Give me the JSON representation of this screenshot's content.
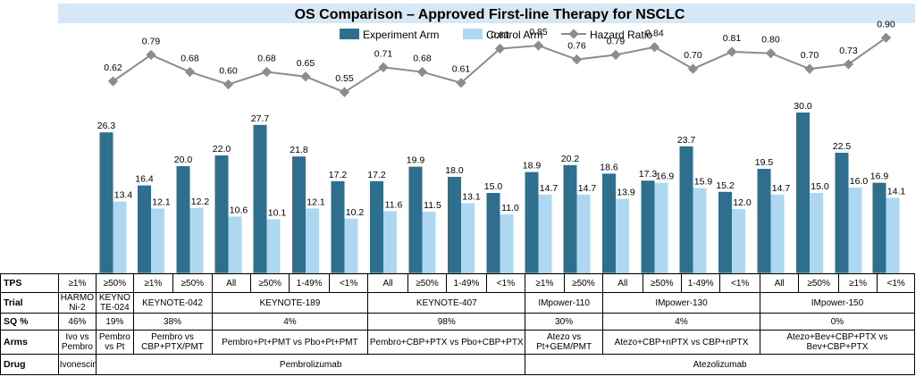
{
  "chart_data": {
    "type": "bar",
    "title": "OS Comparison – Approved First-line  Therapy for NSCLC",
    "legend": [
      "Experiment Arm",
      "Control Arm",
      "Hazard Ratio"
    ],
    "legend_position": "top",
    "colors": {
      "experiment": "#2e6f8e",
      "control": "#aed8f2",
      "hr_line": "#8c8c8c",
      "title_bg": "#d6e7f5"
    },
    "categories": [
      "≥1%",
      "≥50%",
      "≥1%",
      "≥50%",
      "All",
      "≥50%",
      "1-49%",
      "<1%",
      "All",
      "≥50%",
      "1-49%",
      "<1%",
      "≥1%",
      "≥50%",
      "All",
      "≥50%",
      "1-49%",
      "<1%",
      "All",
      "≥50%",
      "≥1%",
      "<1%"
    ],
    "series": [
      {
        "name": "Experiment Arm",
        "values": [
          null,
          26.3,
          16.4,
          20.0,
          22.0,
          27.7,
          21.8,
          17.2,
          17.2,
          19.9,
          18.0,
          15.0,
          18.9,
          20.2,
          18.6,
          17.3,
          23.7,
          15.2,
          19.5,
          30.0,
          22.5,
          16.9
        ]
      },
      {
        "name": "Control Arm",
        "values": [
          null,
          13.4,
          12.1,
          12.2,
          10.6,
          10.1,
          12.1,
          10.2,
          11.6,
          11.5,
          13.1,
          11.0,
          14.7,
          14.7,
          13.9,
          16.9,
          15.9,
          12.0,
          14.7,
          15.0,
          16.0,
          14.1
        ]
      },
      {
        "name": "Hazard Ratio",
        "values": [
          null,
          0.62,
          0.79,
          0.68,
          0.6,
          0.68,
          0.65,
          0.55,
          0.71,
          0.68,
          0.61,
          0.83,
          0.85,
          0.76,
          0.79,
          0.84,
          0.7,
          0.81,
          0.8,
          0.7,
          0.73,
          0.9
        ]
      }
    ],
    "exp_labels": [
      "",
      "26.3",
      "16.4",
      "20.0",
      "22.0",
      "27.7",
      "21.8",
      "17.2",
      "17.2",
      "19.9",
      "18.0",
      "15.0",
      "18.9",
      "20.2",
      "18.6",
      "17.3",
      "23.7",
      "15.2",
      "19.5",
      "30.0",
      "22.5",
      "16.9"
    ],
    "ctl_labels": [
      "",
      "13.4",
      "12.1",
      "12.2",
      "10.6",
      "10.1",
      "12.1",
      "10.2",
      "11.6",
      "11.5",
      "13.1",
      "11.0",
      "14.7",
      "14.7",
      "13.9",
      "16.9",
      "15.9",
      "12.0",
      "14.7",
      "15.0",
      "16.0",
      "14.1"
    ],
    "hr_labels": [
      "",
      "0.62",
      "0.79",
      "0.68",
      "0.60",
      "0.68",
      "0.65",
      "0.55",
      "0.71",
      "0.68",
      "0.61",
      "0.83",
      "0.85",
      "0.76",
      "0.79",
      "0.84",
      "0.70",
      "0.81",
      "0.80",
      "0.70",
      "0.73",
      "0.90"
    ]
  },
  "table": {
    "row_headers": [
      "TPS",
      "Trial",
      "SQ %",
      "Arms",
      "Drug"
    ],
    "tps": [
      "≥1%",
      "≥50%",
      "≥1%",
      "≥50%",
      "All",
      "≥50%",
      "1-49%",
      "<1%",
      "All",
      "≥50%",
      "1-49%",
      "<1%",
      "≥1%",
      "≥50%",
      "All",
      "≥50%",
      "1-49%",
      "<1%",
      "All",
      "≥50%",
      "≥1%",
      "<1%"
    ],
    "trial": [
      "HARMO Ni-2",
      "KEYNO TE-024",
      "KEYNOTE-042",
      "KEYNOTE-189",
      "KEYNOTE-407",
      "IMpower-110",
      "IMpower-130",
      "IMpower-150"
    ],
    "sq": [
      "46%",
      "19%",
      "38%",
      "4%",
      "98%",
      "30%",
      "4%",
      "0%"
    ],
    "arms": [
      "Ivo vs Pembro",
      "Pembro vs Pt",
      "Pembro vs CBP+PTX/PMT",
      "Pembro+Pt+PMT  vs Pbo+Pt+PMT",
      "Pembro+CBP+PTX  vs Pbo+CBP+PTX",
      "Atezo vs Pt+GEM/PMT",
      "Atezo+CBP+nPTX  vs CBP+nPTX",
      "Atezo+Bev+CBP+PTX  vs Bev+CBP+PTX"
    ],
    "drug": [
      "Ivonescimab",
      "Pembrolizumab",
      "Atezolizumab"
    ]
  }
}
